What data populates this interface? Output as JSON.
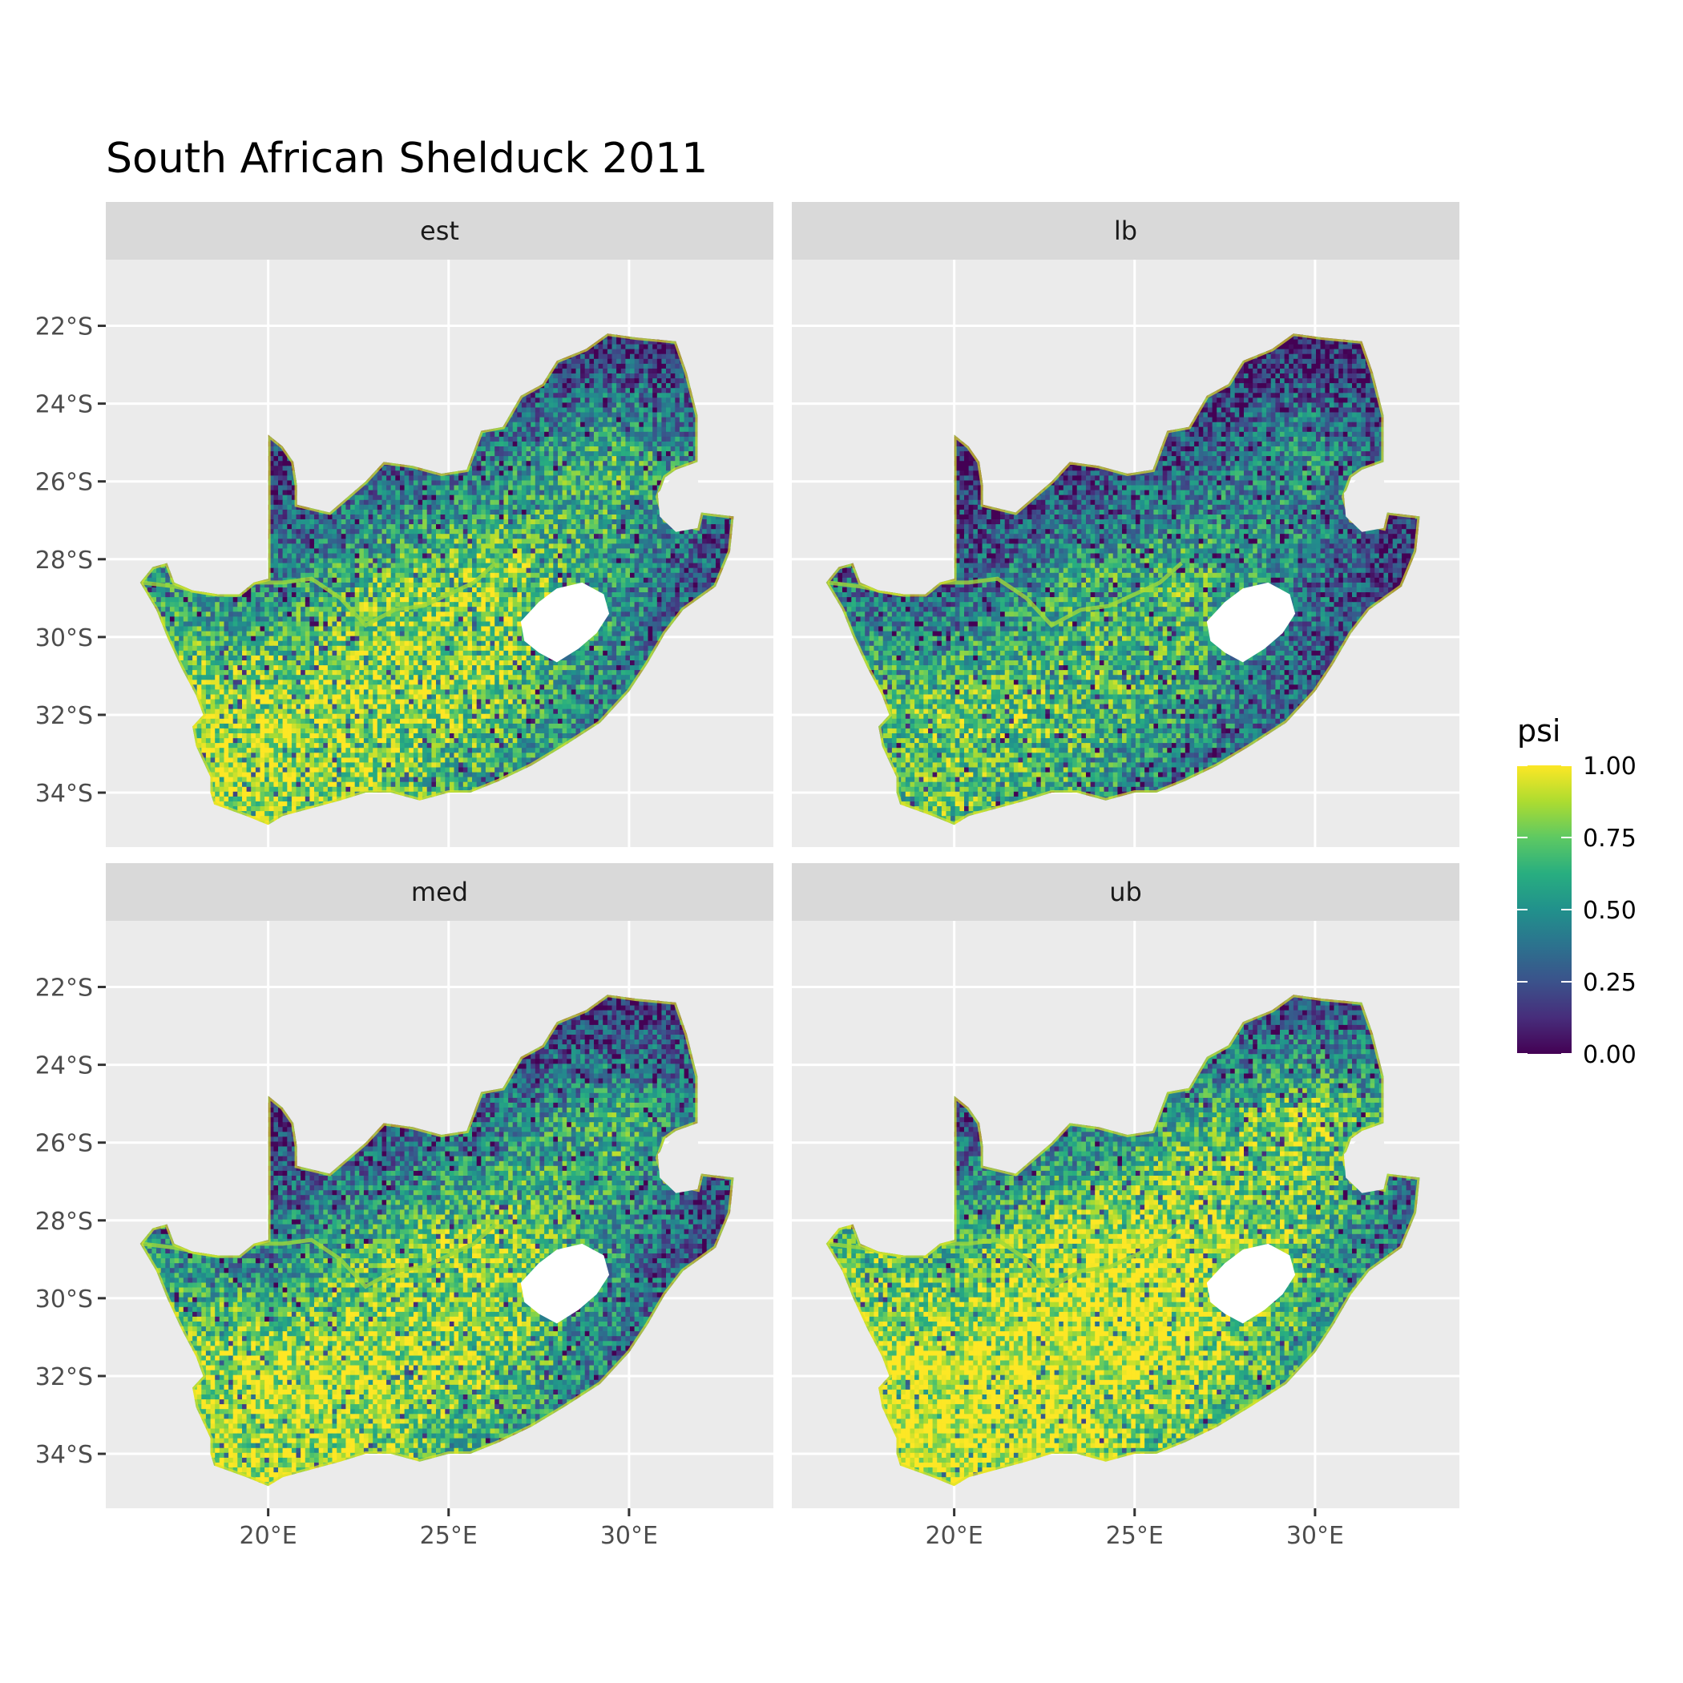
{
  "chart_data": {
    "type": "heatmap",
    "title": "South African Shelduck 2011",
    "panels": [
      {
        "name": "est",
        "pattern": [
          [
            0.18,
            0.1,
            0.08,
            0.06,
            0.12,
            0.2
          ],
          [
            0.3,
            0.15,
            0.22,
            0.45,
            0.7,
            0.3
          ],
          [
            0.55,
            0.4,
            0.75,
            0.85,
            0.55,
            0.15
          ],
          [
            0.8,
            0.92,
            0.9,
            0.78,
            0.4,
            0.12
          ],
          [
            0.85,
            0.88,
            0.75,
            0.45,
            0.2,
            0.1
          ]
        ]
      },
      {
        "name": "lb",
        "pattern": [
          [
            0.1,
            0.06,
            0.05,
            0.04,
            0.08,
            0.12
          ],
          [
            0.18,
            0.08,
            0.12,
            0.3,
            0.55,
            0.18
          ],
          [
            0.4,
            0.28,
            0.6,
            0.72,
            0.4,
            0.08
          ],
          [
            0.62,
            0.78,
            0.75,
            0.6,
            0.25,
            0.06
          ],
          [
            0.7,
            0.72,
            0.58,
            0.3,
            0.12,
            0.05
          ]
        ]
      },
      {
        "name": "med",
        "pattern": [
          [
            0.16,
            0.09,
            0.07,
            0.05,
            0.11,
            0.18
          ],
          [
            0.28,
            0.14,
            0.2,
            0.42,
            0.68,
            0.28
          ],
          [
            0.52,
            0.38,
            0.72,
            0.84,
            0.52,
            0.13
          ],
          [
            0.82,
            0.93,
            0.91,
            0.8,
            0.38,
            0.11
          ],
          [
            0.86,
            0.9,
            0.76,
            0.44,
            0.18,
            0.09
          ]
        ]
      },
      {
        "name": "ub",
        "pattern": [
          [
            0.3,
            0.16,
            0.12,
            0.1,
            0.2,
            0.3
          ],
          [
            0.45,
            0.25,
            0.35,
            0.62,
            0.85,
            0.45
          ],
          [
            0.75,
            0.6,
            0.9,
            0.96,
            0.72,
            0.25
          ],
          [
            0.95,
            0.99,
            0.98,
            0.92,
            0.58,
            0.2
          ],
          [
            0.96,
            0.97,
            0.9,
            0.62,
            0.3,
            0.15
          ]
        ]
      }
    ],
    "xlim": [
      15.5,
      34.0
    ],
    "ylim": [
      -35.4,
      -20.3
    ],
    "x_ticks": [
      20,
      25,
      30
    ],
    "x_tick_labels": [
      "20°E",
      "25°E",
      "30°E"
    ],
    "y_ticks": [
      -22,
      -24,
      -26,
      -28,
      -30,
      -32,
      -34
    ],
    "y_tick_labels": [
      "22°S",
      "24°S",
      "26°S",
      "28°S",
      "30°S",
      "32°S",
      "34°S"
    ],
    "legend": {
      "title": "psi",
      "position": "right",
      "breaks": [
        1.0,
        0.75,
        0.5,
        0.25,
        0.0
      ],
      "labels": [
        "1.00",
        "0.75",
        "0.50",
        "0.25",
        "0.00"
      ],
      "colormap": "viridis",
      "range": [
        0,
        1
      ]
    },
    "grid": true
  },
  "colors": {
    "panel_bg": "#ebebeb",
    "strip_bg": "#d9d9d9",
    "grid": "#ffffff",
    "ticks": "#333333",
    "excluded_region": "#ffffff"
  }
}
